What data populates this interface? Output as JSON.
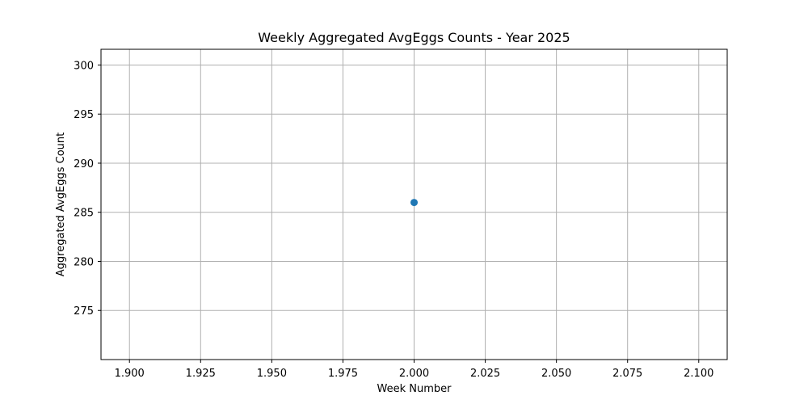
{
  "chart_data": {
    "type": "scatter",
    "title": "Weekly Aggregated AvgEggs Counts - Year 2025",
    "xlabel": "Week Number",
    "ylabel": "Aggregated AvgEggs Count",
    "xlim": [
      1.89,
      2.11
    ],
    "ylim": [
      270.0,
      301.6
    ],
    "xticks": [
      "1.900",
      "1.925",
      "1.950",
      "1.975",
      "2.000",
      "2.025",
      "2.050",
      "2.075",
      "2.100"
    ],
    "yticks": [
      "275",
      "280",
      "285",
      "290",
      "295",
      "300"
    ],
    "grid": true,
    "series": [
      {
        "x": [
          2.0
        ],
        "y": [
          286
        ],
        "color": "#1f77b4"
      }
    ]
  }
}
